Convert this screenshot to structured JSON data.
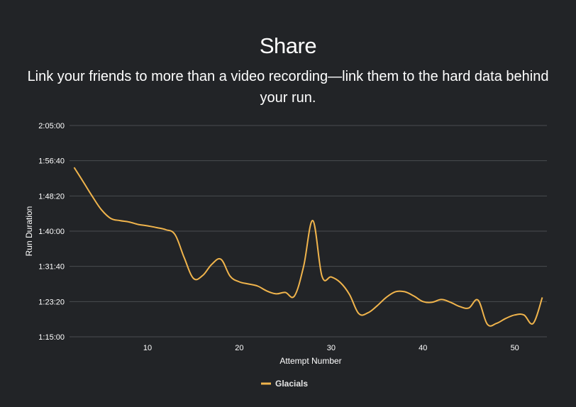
{
  "section": {
    "title": "Share",
    "subtitle": "Link your friends to more than a video recording—link them to the hard data behind your run."
  },
  "colors": {
    "background": "#222427",
    "line": "#f0b44c",
    "grid": "#4a4c50"
  },
  "chart_data": {
    "type": "line",
    "xlabel": "Attempt Number",
    "ylabel": "Run Duration",
    "grid": true,
    "legend_position": "bottom",
    "xlim": [
      1.5,
      53.5
    ],
    "ylim": [
      4500,
      7500
    ],
    "x_ticks": [
      10,
      20,
      30,
      40,
      50
    ],
    "y_ticks": [
      {
        "value": 4500,
        "label": "1:15:00"
      },
      {
        "value": 5000,
        "label": "1:23:20"
      },
      {
        "value": 5500,
        "label": "1:31:40"
      },
      {
        "value": 6000,
        "label": "1:40:00"
      },
      {
        "value": 6500,
        "label": "1:48:20"
      },
      {
        "value": 7000,
        "label": "1:56:40"
      },
      {
        "value": 7500,
        "label": "2:05:00"
      }
    ],
    "series": [
      {
        "name": "Glacials",
        "x": [
          2,
          3,
          4,
          5,
          6,
          7,
          8,
          9,
          10,
          11,
          12,
          13,
          14,
          15,
          16,
          17,
          18,
          19,
          20,
          21,
          22,
          23,
          24,
          25,
          26,
          27,
          28,
          29,
          30,
          31,
          32,
          33,
          34,
          35,
          36,
          37,
          38,
          39,
          40,
          41,
          42,
          43,
          44,
          45,
          46,
          47,
          48,
          49,
          50,
          51,
          52,
          53
        ],
        "y": [
          6905,
          6700,
          6490,
          6300,
          6180,
          6150,
          6130,
          6095,
          6075,
          6050,
          6020,
          5950,
          5620,
          5330,
          5370,
          5530,
          5600,
          5360,
          5280,
          5250,
          5220,
          5150,
          5110,
          5130,
          5080,
          5500,
          6150,
          5360,
          5350,
          5270,
          5100,
          4830,
          4840,
          4940,
          5060,
          5140,
          5140,
          5080,
          5000,
          4990,
          5030,
          4990,
          4930,
          4910,
          5020,
          4680,
          4690,
          4760,
          4810,
          4810,
          4690,
          5060
        ]
      }
    ]
  }
}
